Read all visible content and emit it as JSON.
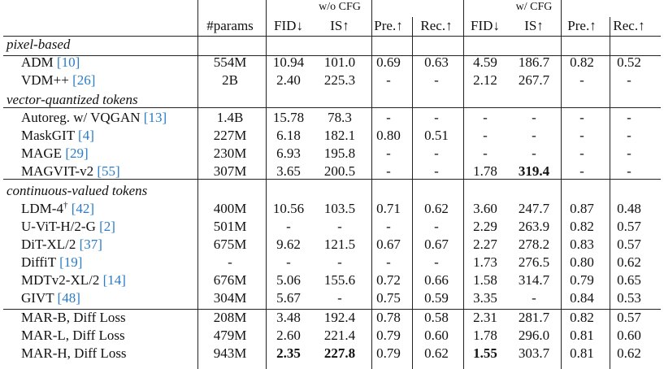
{
  "group_headers": {
    "without_cfg": "w/o CFG",
    "with_cfg": "w/ CFG"
  },
  "columns": [
    "#params",
    "FID↓",
    "IS↑",
    "Pre.↑",
    "Rec.↑",
    "FID↓",
    "IS↑",
    "Pre.↑",
    "Rec.↑"
  ],
  "sections": {
    "pixel": "pixel-based",
    "vq": "vector-quantized tokens",
    "cont": "continuous-valued tokens"
  },
  "rows": [
    {
      "name": "ADM",
      "ref": "[10]",
      "v": [
        "554M",
        "10.94",
        "101.0",
        "0.69",
        "0.63",
        "4.59",
        "186.7",
        "0.82",
        "0.52"
      ]
    },
    {
      "name": "VDM++",
      "ref": "[26]",
      "v": [
        "2B",
        "2.40",
        "225.3",
        "-",
        "-",
        "2.12",
        "267.7",
        "-",
        "-"
      ]
    },
    {
      "name": "Autoreg. w/ VQGAN",
      "ref": "[13]",
      "v": [
        "1.4B",
        "15.78",
        "78.3",
        "-",
        "-",
        "-",
        "-",
        "-",
        "-"
      ]
    },
    {
      "name": "MaskGIT",
      "ref": "[4]",
      "v": [
        "227M",
        "6.18",
        "182.1",
        "0.80",
        "0.51",
        "-",
        "-",
        "-",
        "-"
      ]
    },
    {
      "name": "MAGE",
      "ref": "[29]",
      "v": [
        "230M",
        "6.93",
        "195.8",
        "-",
        "-",
        "-",
        "-",
        "-",
        "-"
      ]
    },
    {
      "name": "MAGVIT-v2",
      "ref": "[55]",
      "v": [
        "307M",
        "3.65",
        "200.5",
        "-",
        "-",
        "1.78",
        "319.4",
        "-",
        "-"
      ]
    },
    {
      "name": "LDM-4",
      "sup": "†",
      "ref": "[42]",
      "v": [
        "400M",
        "10.56",
        "103.5",
        "0.71",
        "0.62",
        "3.60",
        "247.7",
        "0.87",
        "0.48"
      ]
    },
    {
      "name": "U-ViT-H/2-G",
      "ref": "[2]",
      "v": [
        "501M",
        "-",
        "-",
        "-",
        "-",
        "2.29",
        "263.9",
        "0.82",
        "0.57"
      ]
    },
    {
      "name": "DiT-XL/2",
      "ref": "[37]",
      "v": [
        "675M",
        "9.62",
        "121.5",
        "0.67",
        "0.67",
        "2.27",
        "278.2",
        "0.83",
        "0.57"
      ]
    },
    {
      "name": "DiffiT",
      "ref": "[19]",
      "v": [
        "-",
        "-",
        "-",
        "-",
        "-",
        "1.73",
        "276.5",
        "0.80",
        "0.62"
      ]
    },
    {
      "name": "MDTv2-XL/2",
      "ref": "[14]",
      "v": [
        "676M",
        "5.06",
        "155.6",
        "0.72",
        "0.66",
        "1.58",
        "314.7",
        "0.79",
        "0.65"
      ]
    },
    {
      "name": "GIVT",
      "ref": "[48]",
      "v": [
        "304M",
        "5.67",
        "-",
        "0.75",
        "0.59",
        "3.35",
        "-",
        "0.84",
        "0.53"
      ]
    },
    {
      "name": "MAR-B, Diff Loss",
      "v": [
        "208M",
        "3.48",
        "192.4",
        "0.78",
        "0.58",
        "2.31",
        "281.7",
        "0.82",
        "0.57"
      ]
    },
    {
      "name": "MAR-L, Diff Loss",
      "v": [
        "479M",
        "2.60",
        "221.4",
        "0.79",
        "0.60",
        "1.78",
        "296.0",
        "0.81",
        "0.60"
      ]
    },
    {
      "name": "MAR-H, Diff Loss",
      "v": [
        "943M",
        "2.35",
        "227.8",
        "0.79",
        "0.62",
        "1.55",
        "303.7",
        "0.81",
        "0.62"
      ]
    }
  ],
  "bold_cells": [
    [
      5,
      6
    ],
    [
      14,
      1
    ],
    [
      14,
      2
    ],
    [
      14,
      5
    ]
  ]
}
